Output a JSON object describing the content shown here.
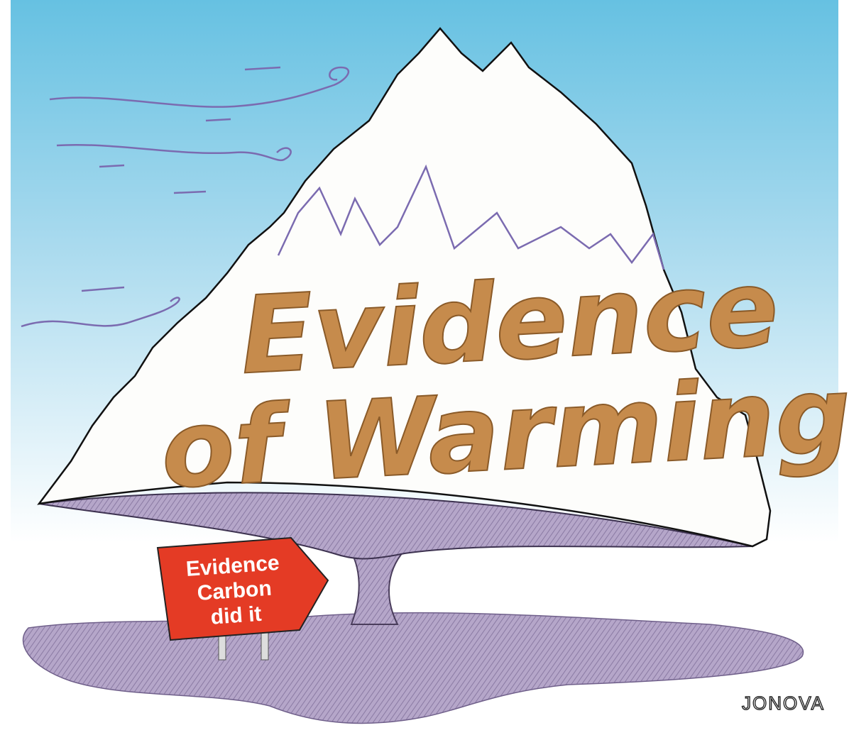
{
  "headline": {
    "line1": "Evidence",
    "line2": "of Warming"
  },
  "sign": {
    "lines": [
      "Evidence",
      "Carbon",
      "did it"
    ]
  },
  "signature": "JONOVA"
}
